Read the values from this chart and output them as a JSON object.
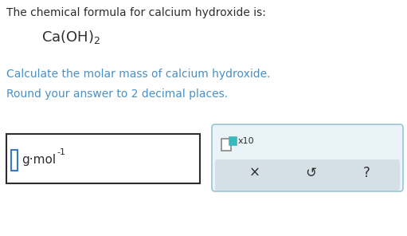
{
  "bg_color": "#ffffff",
  "text_color_dark": "#2d2d2d",
  "text_color_blue": "#4a90c4",
  "line1": "The chemical formula for calcium hydroxide is:",
  "line3": "Calculate the molar mass of calcium hydroxide.",
  "line4": "Round your answer to 2 decimal places.",
  "input_box_edge": "#2d2d2d",
  "input_cursor_color": "#3a7abf",
  "unit_text": "g·mol",
  "unit_sup": "-1",
  "right_box_bg": "#eaf4f8",
  "right_box_border": "#9ac4d4",
  "small_sq_border": "#888888",
  "small_sq_teal_fill": "#3ab8c0",
  "small_sq_teal_border": "#3ab8c0",
  "x10_text": "x10",
  "x_symbol": "×",
  "undo_symbol": "↺",
  "question_symbol": "?",
  "button_bg": "#d4dfe6"
}
